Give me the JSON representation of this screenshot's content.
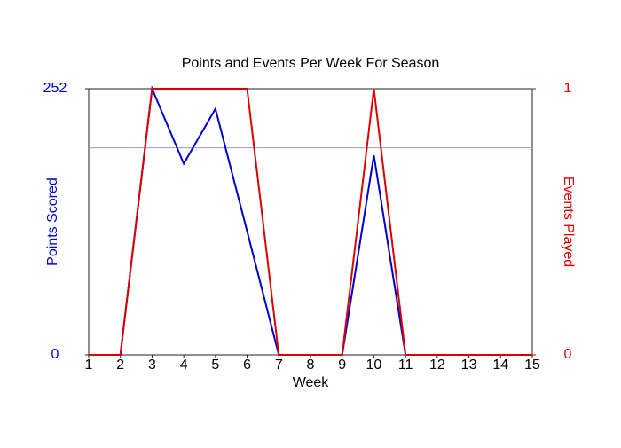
{
  "chart_data": {
    "type": "line",
    "title": "Points and Events Per Week For Season",
    "x_label": "Week",
    "y_label": "Points Scored",
    "y2_label": "Events Played",
    "x": [
      1,
      2,
      3,
      4,
      5,
      6,
      7,
      8,
      9,
      10,
      11,
      12,
      13,
      14,
      15
    ],
    "xlim": [
      1,
      15
    ],
    "xticks": [
      1,
      2,
      3,
      4,
      5,
      6,
      7,
      8,
      9,
      10,
      11,
      12,
      13,
      14,
      15
    ],
    "ylim": [
      0,
      252
    ],
    "yticks": [
      0,
      252
    ],
    "y_color": "#0000cc",
    "y2lim": [
      0,
      1
    ],
    "y2ticks": [
      0,
      1
    ],
    "y2_color": "#dd0000",
    "reference_line": {
      "value": 196,
      "color": "#9999dd"
    },
    "series": [
      {
        "name": "Points Scored",
        "color": "#0000cc",
        "values": [
          0,
          0,
          252,
          181,
          233,
          117,
          0,
          0,
          0,
          189,
          0,
          0,
          0,
          0,
          0
        ]
      },
      {
        "name": "Events Played",
        "color": "#dd0000",
        "axis": "y2",
        "values": [
          0,
          0,
          1,
          1,
          1,
          1,
          0,
          0,
          0,
          1,
          0,
          0,
          0,
          0,
          0
        ]
      }
    ]
  }
}
